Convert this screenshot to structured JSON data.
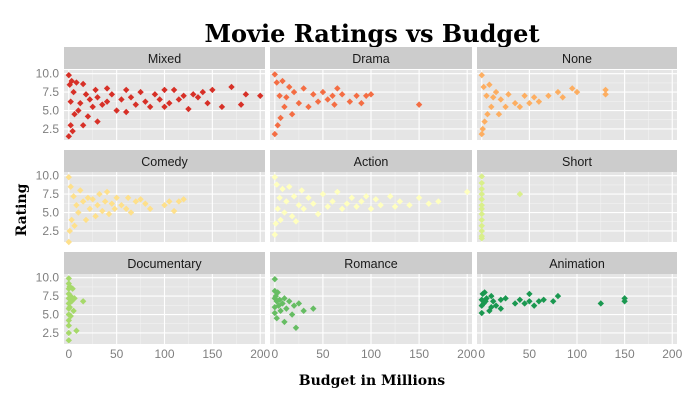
{
  "chart_data": {
    "type": "scatter",
    "title": "Movie Ratings vs Budget",
    "xlabel": "Budget in Millions",
    "ylabel": "Rating",
    "xlim": [
      -5,
      205
    ],
    "ylim": [
      1,
      10.5
    ],
    "x_ticks": [
      0,
      50,
      100,
      150,
      200
    ],
    "y_ticks": [
      2.5,
      5.0,
      7.5,
      10.0
    ],
    "x_tick_labels": [
      "0",
      "50",
      "100",
      "150",
      "200"
    ],
    "y_tick_labels": [
      "2.5",
      "5.0",
      "7.5",
      "10.0"
    ],
    "grid": true,
    "facet_layout": {
      "rows": 3,
      "cols": 3
    },
    "panels": [
      {
        "name": "Mixed",
        "color": "#d73027",
        "points": [
          [
            0,
            9.8
          ],
          [
            0,
            1.5
          ],
          [
            1,
            8.5
          ],
          [
            2,
            3.0
          ],
          [
            2,
            6.2
          ],
          [
            3,
            9.0
          ],
          [
            4,
            2.2
          ],
          [
            5,
            7.5
          ],
          [
            6,
            4.5
          ],
          [
            8,
            8.8
          ],
          [
            10,
            5.0
          ],
          [
            12,
            6.0
          ],
          [
            15,
            8.6
          ],
          [
            15,
            3.0
          ],
          [
            18,
            7.2
          ],
          [
            20,
            4.2
          ],
          [
            22,
            6.5
          ],
          [
            25,
            5.5
          ],
          [
            28,
            7.8
          ],
          [
            30,
            6.8
          ],
          [
            30,
            3.5
          ],
          [
            35,
            5.8
          ],
          [
            40,
            6.2
          ],
          [
            40,
            8.0
          ],
          [
            45,
            7.2
          ],
          [
            50,
            5.0
          ],
          [
            55,
            6.5
          ],
          [
            60,
            7.8
          ],
          [
            60,
            4.8
          ],
          [
            65,
            6.8
          ],
          [
            70,
            5.8
          ],
          [
            75,
            7.5
          ],
          [
            80,
            6.2
          ],
          [
            85,
            5.5
          ],
          [
            90,
            7.2
          ],
          [
            95,
            6.5
          ],
          [
            100,
            5.5
          ],
          [
            100,
            7.8
          ],
          [
            105,
            6.0
          ],
          [
            110,
            7.8
          ],
          [
            115,
            6.5
          ],
          [
            120,
            7.0
          ],
          [
            125,
            5.2
          ],
          [
            130,
            7.2
          ],
          [
            135,
            6.8
          ],
          [
            140,
            7.5
          ],
          [
            145,
            6.0
          ],
          [
            150,
            7.8
          ],
          [
            160,
            5.5
          ],
          [
            170,
            8.2
          ],
          [
            180,
            5.8
          ],
          [
            185,
            7.2
          ],
          [
            200,
            7.0
          ]
        ]
      },
      {
        "name": "Drama",
        "color": "#f46d43",
        "points": [
          [
            0,
            9.9
          ],
          [
            0,
            1.8
          ],
          [
            2,
            8.8
          ],
          [
            3,
            3.0
          ],
          [
            5,
            7.0
          ],
          [
            6,
            4.0
          ],
          [
            8,
            9.0
          ],
          [
            10,
            5.5
          ],
          [
            12,
            6.8
          ],
          [
            15,
            8.2
          ],
          [
            18,
            4.5
          ],
          [
            20,
            7.5
          ],
          [
            25,
            6.0
          ],
          [
            30,
            8.0
          ],
          [
            35,
            5.5
          ],
          [
            40,
            7.2
          ],
          [
            45,
            6.2
          ],
          [
            50,
            7.5
          ],
          [
            55,
            6.5
          ],
          [
            60,
            7.0
          ],
          [
            62,
            5.8
          ],
          [
            65,
            8.0
          ],
          [
            70,
            7.2
          ],
          [
            78,
            6.2
          ],
          [
            85,
            7.0
          ],
          [
            90,
            6.0
          ],
          [
            95,
            7.0
          ],
          [
            100,
            7.2
          ],
          [
            150,
            5.8
          ]
        ]
      },
      {
        "name": "None",
        "color": "#fdae61",
        "points": [
          [
            0,
            9.8
          ],
          [
            0,
            1.8
          ],
          [
            1,
            2.5
          ],
          [
            2,
            8.2
          ],
          [
            3,
            3.5
          ],
          [
            5,
            7.0
          ],
          [
            6,
            4.5
          ],
          [
            8,
            8.5
          ],
          [
            10,
            5.5
          ],
          [
            12,
            6.8
          ],
          [
            15,
            7.5
          ],
          [
            18,
            4.5
          ],
          [
            20,
            6.5
          ],
          [
            25,
            5.5
          ],
          [
            28,
            7.2
          ],
          [
            35,
            6.0
          ],
          [
            40,
            5.5
          ],
          [
            45,
            7.0
          ],
          [
            50,
            6.0
          ],
          [
            55,
            6.8
          ],
          [
            60,
            6.2
          ],
          [
            70,
            7.0
          ],
          [
            80,
            7.5
          ],
          [
            85,
            6.8
          ],
          [
            95,
            8.0
          ],
          [
            100,
            7.5
          ],
          [
            130,
            7.8
          ],
          [
            130,
            7.2
          ]
        ]
      },
      {
        "name": "Comedy",
        "color": "#fee08b",
        "points": [
          [
            0,
            9.8
          ],
          [
            0,
            1.0
          ],
          [
            1,
            2.5
          ],
          [
            2,
            8.5
          ],
          [
            3,
            4.0
          ],
          [
            5,
            7.2
          ],
          [
            6,
            3.2
          ],
          [
            8,
            6.0
          ],
          [
            10,
            5.0
          ],
          [
            12,
            8.0
          ],
          [
            15,
            6.5
          ],
          [
            18,
            4.0
          ],
          [
            20,
            7.0
          ],
          [
            22,
            5.5
          ],
          [
            25,
            6.8
          ],
          [
            28,
            4.5
          ],
          [
            30,
            6.0
          ],
          [
            32,
            7.5
          ],
          [
            35,
            5.2
          ],
          [
            38,
            6.5
          ],
          [
            40,
            7.8
          ],
          [
            42,
            4.8
          ],
          [
            45,
            6.2
          ],
          [
            48,
            5.5
          ],
          [
            50,
            7.0
          ],
          [
            55,
            6.0
          ],
          [
            60,
            5.5
          ],
          [
            62,
            7.0
          ],
          [
            65,
            5.0
          ],
          [
            70,
            6.5
          ],
          [
            75,
            6.8
          ],
          [
            80,
            6.2
          ],
          [
            85,
            5.5
          ],
          [
            100,
            6.0
          ],
          [
            105,
            6.5
          ],
          [
            110,
            5.2
          ],
          [
            115,
            6.5
          ],
          [
            120,
            6.8
          ]
        ]
      },
      {
        "name": "Action",
        "color": "#ffffbf",
        "points": [
          [
            0,
            9.8
          ],
          [
            0,
            2.0
          ],
          [
            1,
            3.5
          ],
          [
            2,
            8.8
          ],
          [
            3,
            5.5
          ],
          [
            5,
            7.0
          ],
          [
            6,
            4.0
          ],
          [
            8,
            8.2
          ],
          [
            10,
            5.0
          ],
          [
            12,
            6.5
          ],
          [
            15,
            8.5
          ],
          [
            18,
            4.5
          ],
          [
            20,
            7.2
          ],
          [
            22,
            3.8
          ],
          [
            25,
            6.0
          ],
          [
            28,
            8.0
          ],
          [
            30,
            5.5
          ],
          [
            35,
            7.0
          ],
          [
            40,
            6.2
          ],
          [
            45,
            4.8
          ],
          [
            50,
            7.5
          ],
          [
            55,
            5.8
          ],
          [
            60,
            6.5
          ],
          [
            65,
            7.8
          ],
          [
            70,
            5.5
          ],
          [
            75,
            6.2
          ],
          [
            80,
            7.0
          ],
          [
            85,
            5.8
          ],
          [
            90,
            6.5
          ],
          [
            95,
            7.2
          ],
          [
            100,
            5.5
          ],
          [
            105,
            6.8
          ],
          [
            110,
            6.0
          ],
          [
            120,
            7.2
          ],
          [
            125,
            5.8
          ],
          [
            130,
            6.5
          ],
          [
            140,
            6.0
          ],
          [
            150,
            7.0
          ],
          [
            160,
            6.2
          ],
          [
            170,
            6.5
          ],
          [
            200,
            7.8
          ]
        ]
      },
      {
        "name": "Short",
        "color": "#d9ef8b",
        "points": [
          [
            0,
            9.9
          ],
          [
            0,
            9.0
          ],
          [
            0,
            8.2
          ],
          [
            0,
            7.5
          ],
          [
            0,
            6.8
          ],
          [
            0,
            6.0
          ],
          [
            0,
            5.5
          ],
          [
            0,
            4.8
          ],
          [
            0,
            4.0
          ],
          [
            0,
            3.2
          ],
          [
            0,
            2.5
          ],
          [
            0,
            1.8
          ],
          [
            0,
            1.5
          ],
          [
            40,
            7.5
          ]
        ]
      },
      {
        "name": "Documentary",
        "color": "#a6d96a",
        "points": [
          [
            0,
            9.9
          ],
          [
            0,
            9.2
          ],
          [
            0,
            8.5
          ],
          [
            0,
            7.8
          ],
          [
            0,
            7.2
          ],
          [
            0,
            6.5
          ],
          [
            0,
            5.8
          ],
          [
            0,
            5.0
          ],
          [
            0,
            4.2
          ],
          [
            0,
            3.5
          ],
          [
            0,
            2.5
          ],
          [
            0,
            1.5
          ],
          [
            1,
            8.8
          ],
          [
            1,
            6.0
          ],
          [
            2,
            7.5
          ],
          [
            2,
            4.8
          ],
          [
            3,
            6.8
          ],
          [
            4,
            8.5
          ],
          [
            5,
            5.5
          ],
          [
            6,
            7.2
          ],
          [
            8,
            2.8
          ],
          [
            15,
            6.8
          ]
        ]
      },
      {
        "name": "Romance",
        "color": "#66bd63",
        "points": [
          [
            0,
            9.8
          ],
          [
            0,
            8.2
          ],
          [
            0,
            7.2
          ],
          [
            0,
            6.0
          ],
          [
            0,
            5.2
          ],
          [
            1,
            7.5
          ],
          [
            2,
            6.8
          ],
          [
            2,
            4.5
          ],
          [
            3,
            8.0
          ],
          [
            4,
            6.2
          ],
          [
            5,
            7.0
          ],
          [
            6,
            5.5
          ],
          [
            8,
            6.5
          ],
          [
            10,
            7.2
          ],
          [
            10,
            4.0
          ],
          [
            12,
            5.8
          ],
          [
            15,
            6.8
          ],
          [
            18,
            5.0
          ],
          [
            20,
            6.2
          ],
          [
            22,
            3.2
          ],
          [
            25,
            6.5
          ],
          [
            30,
            5.5
          ],
          [
            40,
            5.8
          ]
        ]
      },
      {
        "name": "Animation",
        "color": "#1a9850",
        "points": [
          [
            0,
            7.0
          ],
          [
            0,
            6.2
          ],
          [
            0,
            5.2
          ],
          [
            1,
            7.8
          ],
          [
            2,
            6.5
          ],
          [
            3,
            8.0
          ],
          [
            4,
            6.8
          ],
          [
            5,
            7.2
          ],
          [
            8,
            5.5
          ],
          [
            10,
            7.5
          ],
          [
            10,
            6.0
          ],
          [
            12,
            6.8
          ],
          [
            15,
            6.2
          ],
          [
            20,
            7.0
          ],
          [
            20,
            5.8
          ],
          [
            25,
            7.2
          ],
          [
            35,
            6.5
          ],
          [
            40,
            7.0
          ],
          [
            45,
            6.5
          ],
          [
            50,
            7.8
          ],
          [
            50,
            6.8
          ],
          [
            55,
            6.2
          ],
          [
            60,
            6.8
          ],
          [
            65,
            7.0
          ],
          [
            75,
            6.8
          ],
          [
            80,
            7.5
          ],
          [
            125,
            6.5
          ],
          [
            150,
            7.2
          ],
          [
            150,
            6.8
          ]
        ]
      }
    ]
  }
}
